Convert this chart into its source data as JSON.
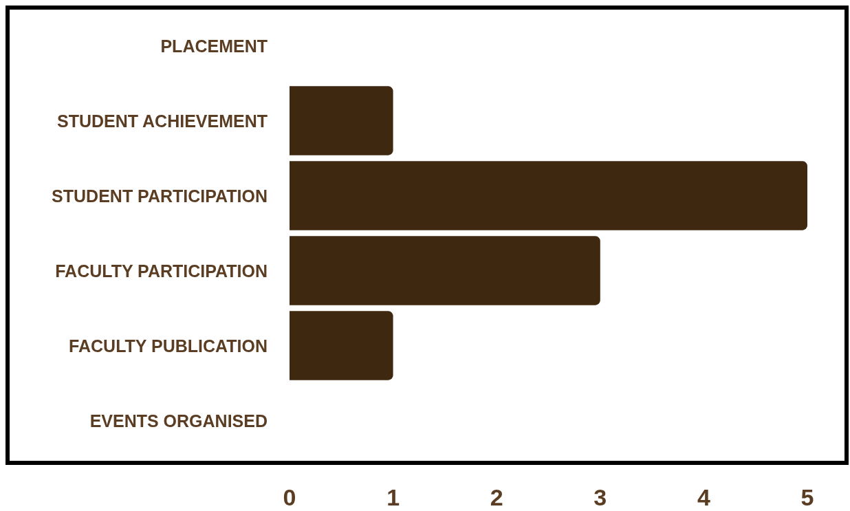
{
  "chart_data": {
    "type": "bar",
    "orientation": "horizontal",
    "categories": [
      "PLACEMENT",
      "STUDENT ACHIEVEMENT",
      "STUDENT PARTICIPATION",
      "FACULTY PARTICIPATION",
      "FACULTY PUBLICATION",
      "EVENTS ORGANISED"
    ],
    "values": [
      0,
      1,
      5,
      3,
      1,
      0
    ],
    "color": "#3f2810",
    "xlim": [
      0,
      5
    ],
    "xticks": [
      0,
      1,
      2,
      3,
      4,
      5
    ],
    "grid": false
  }
}
